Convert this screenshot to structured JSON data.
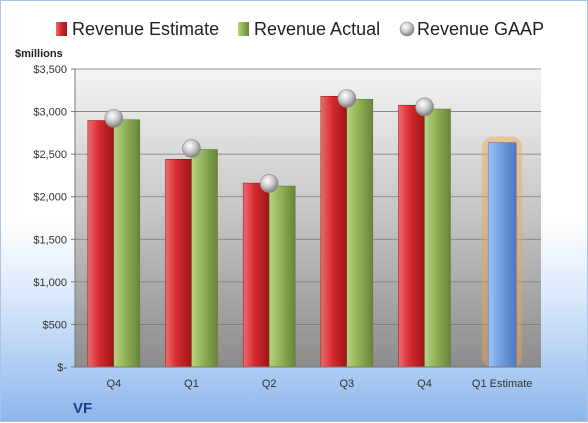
{
  "chart_data": {
    "type": "bar",
    "unit_label": "$millions",
    "company": "VF",
    "categories": [
      "Q4",
      "Q1",
      "Q2",
      "Q3",
      "Q4",
      "Q1 Estimate"
    ],
    "y_ticks": [
      "$-",
      "$500",
      "$1,000",
      "$1,500",
      "$2,000",
      "$2,500",
      "$3,000",
      "$3,500"
    ],
    "ylim": [
      0,
      3500
    ],
    "grid": true,
    "legend_position": "top",
    "series": [
      {
        "name": "Revenue Estimate",
        "kind": "bar",
        "color": "#d42a2f",
        "values": [
          2895,
          2440,
          2160,
          3180,
          3075,
          null
        ]
      },
      {
        "name": "Revenue Actual",
        "kind": "bar",
        "color": "#8fb255",
        "values": [
          2905,
          2555,
          2125,
          3145,
          3030,
          null
        ]
      },
      {
        "name": "Revenue GAAP",
        "kind": "marker",
        "color": "#b5b5b5",
        "values": [
          2920,
          2565,
          2155,
          3155,
          3055,
          null
        ]
      },
      {
        "name": "Q1 Estimate",
        "kind": "bar",
        "color": "#6e9fe0",
        "highlight_color": "#f5a24b",
        "values": [
          null,
          null,
          null,
          null,
          null,
          2635
        ]
      }
    ]
  }
}
